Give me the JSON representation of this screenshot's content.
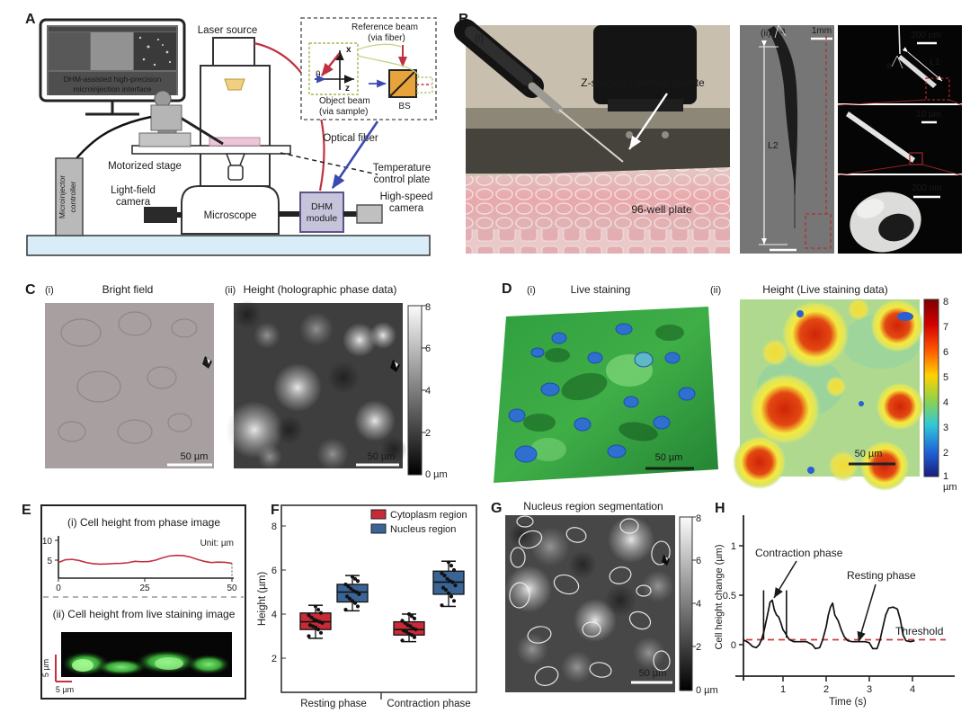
{
  "panelA": {
    "label": "A",
    "monitor_caption": [
      "DHM-assisted high-precision",
      "microinjection interface"
    ],
    "laser_source": "Laser source",
    "reference_beam1": "Reference beam",
    "reference_beam2": "(via fiber)",
    "object_beam1": "Object beam",
    "object_beam2": "(via sample)",
    "bs": "BS",
    "axis_x": "x",
    "axis_z": "z",
    "theta": "θ",
    "optical_fiber": "Optical fiber",
    "motorized_stage": "Motorized stage",
    "temperature1": "Temperature",
    "temperature2": "control plate",
    "microinjector1": "Microinjector",
    "microinjector2": "controller",
    "lightfield1": "Light-field",
    "lightfield2": "camera",
    "microscope": "Microscope",
    "dhm1": "DHM",
    "dhm2": "module",
    "highspeed1": "High-speed",
    "highspeed2": "camera"
  },
  "panelB": {
    "label": "B",
    "sub_i": "(i)",
    "sub_ii": "(ii)",
    "pipette_label": "Z-shaped injection pipette",
    "plate_label": "96-well plate",
    "a_label": "a",
    "a_label2": "a",
    "L1": "L1",
    "L2": "L2",
    "scale_1mm": "1mm",
    "scale_200um": "200 µm",
    "scale_10um": "10 µm",
    "scale_200nm": "200 nm"
  },
  "panelC": {
    "label": "C",
    "sub_i": "(i)",
    "sub_ii": "(ii)",
    "title_i": "Bright field",
    "title_ii": "Height (holographic phase data)",
    "scalebar_i": "50 µm",
    "scalebar_ii": "50 µm",
    "colorbar_ticks": [
      "8",
      "6",
      "4",
      "2"
    ],
    "colorbar_bottom": "0 µm"
  },
  "panelD": {
    "label": "D",
    "sub_i": "(i)",
    "sub_ii": "(ii)",
    "title_i": "Live staining",
    "title_ii": "Height (Live staining data)",
    "scalebar_i": "50 µm",
    "scalebar_ii": "50 µm",
    "colorbar_ticks": [
      "8",
      "7",
      "6",
      "5",
      "4",
      "3",
      "2",
      "1"
    ],
    "colorbar_unit": "µm"
  },
  "panelE": {
    "label": "E",
    "title_i": "(i) Cell height from phase image",
    "title_ii": "(ii) Cell height from live staining image",
    "unit_note": "Unit: µm",
    "y_ticks": [
      "10",
      "5"
    ],
    "x_ticks": [
      "0",
      "25",
      "50"
    ],
    "scale_v": "5 µm",
    "scale_h": "5 µm"
  },
  "panelF": {
    "label": "F",
    "ylabel": "Height (µm)",
    "y_ticks": [
      "8",
      "6",
      "4",
      "2"
    ],
    "legend": [
      {
        "label": "Cytoplasm region",
        "color": "#c82a36"
      },
      {
        "label": "Nucleus region",
        "color": "#3a6496"
      }
    ],
    "x_labels": [
      "Resting phase",
      "Contraction phase"
    ]
  },
  "panelG": {
    "label": "G",
    "title": "Nucleus region segmentation",
    "scalebar": "50 µm",
    "colorbar_ticks": [
      "8",
      "6",
      "4",
      "2"
    ],
    "colorbar_bottom": "0 µm"
  },
  "panelH": {
    "label": "H",
    "ylabel": "Cell height change (µm)",
    "xlabel": "Time (s)",
    "y_ticks": [
      "1",
      "0.5",
      "0"
    ],
    "x_ticks": [
      "1",
      "2",
      "3",
      "4"
    ],
    "annotation_contraction": "Contraction phase",
    "annotation_resting": "Resting phase",
    "threshold_label": "Threshold"
  },
  "colors": {
    "curve_red": "#c23140",
    "threshold_red": "#cf3a3a",
    "box_red": "#c82a36",
    "box_blue": "#3a6496",
    "bench_blue": "#d9edf8",
    "dhm_purple": "#c6c4da",
    "bs_orange": "#e8a43a"
  },
  "chart_data": [
    {
      "id": "E-line",
      "type": "line",
      "title": "(i) Cell height from phase image",
      "unit": "µm",
      "xlim": [
        0,
        50
      ],
      "ylim": [
        0,
        10
      ],
      "x_ticks": [
        0,
        25,
        50
      ],
      "y_ticks": [
        5,
        10
      ],
      "x": [
        0,
        2,
        4,
        6,
        8,
        10,
        12,
        14,
        16,
        18,
        20,
        22,
        24,
        26,
        28,
        30,
        32,
        34,
        36,
        38,
        40,
        42,
        44,
        46,
        48,
        50
      ],
      "y": [
        4.4,
        5.1,
        5.2,
        4.9,
        4.4,
        4.1,
        4.0,
        4.05,
        4.15,
        4.2,
        4.35,
        4.7,
        4.6,
        4.65,
        5.0,
        5.6,
        6.05,
        6.2,
        6.15,
        5.8,
        5.2,
        4.7,
        4.4,
        4.5,
        4.45,
        4.2
      ]
    },
    {
      "id": "F-box",
      "type": "box",
      "ylabel": "Height (µm)",
      "ylim": [
        1.5,
        8.6
      ],
      "y_ticks": [
        2,
        4,
        6,
        8
      ],
      "categories": [
        "Resting phase",
        "Contraction phase"
      ],
      "series": [
        {
          "name": "Cytoplasm region",
          "color": "#c82a36",
          "boxes": [
            {
              "whisker_low": 2.9,
              "q1": 3.3,
              "median": 3.65,
              "q3": 4.05,
              "whisker_high": 4.4,
              "points": [
                3.0,
                3.15,
                3.3,
                3.4,
                3.45,
                3.5,
                3.6,
                3.65,
                3.7,
                3.75,
                3.85,
                3.95,
                4.05,
                4.2,
                4.35
              ]
            },
            {
              "whisker_low": 2.75,
              "q1": 3.05,
              "median": 3.3,
              "q3": 3.65,
              "whisker_high": 4.0,
              "points": [
                2.8,
                2.95,
                3.05,
                3.1,
                3.2,
                3.25,
                3.3,
                3.35,
                3.45,
                3.5,
                3.6,
                3.7,
                3.8,
                3.9,
                4.0
              ]
            }
          ]
        },
        {
          "name": "Nucleus region",
          "color": "#3a6496",
          "boxes": [
            {
              "whisker_low": 4.15,
              "q1": 4.55,
              "median": 5.0,
              "q3": 5.35,
              "whisker_high": 5.75,
              "points": [
                4.2,
                4.35,
                4.5,
                4.6,
                4.7,
                4.8,
                4.9,
                5.0,
                5.05,
                5.15,
                5.25,
                5.35,
                5.5,
                5.6,
                5.7
              ]
            },
            {
              "whisker_low": 4.35,
              "q1": 4.9,
              "median": 5.45,
              "q3": 5.95,
              "whisker_high": 6.4,
              "points": [
                4.4,
                4.6,
                4.8,
                4.95,
                5.1,
                5.2,
                5.3,
                5.45,
                5.5,
                5.6,
                5.75,
                5.85,
                6.0,
                6.2,
                6.35
              ]
            }
          ]
        }
      ]
    },
    {
      "id": "H-line",
      "type": "line",
      "ylabel": "Cell height change (µm)",
      "xlabel": "Time (s)",
      "xlim": [
        0,
        4.7
      ],
      "ylim": [
        -0.15,
        1.15
      ],
      "x_ticks": [
        1,
        2,
        3,
        4
      ],
      "y_ticks": [
        0,
        0.5,
        1
      ],
      "threshold": 0.05,
      "x": [
        0.08,
        0.2,
        0.3,
        0.38,
        0.45,
        0.5,
        0.55,
        0.6,
        0.65,
        0.7,
        0.75,
        0.8,
        0.85,
        0.9,
        0.95,
        1.0,
        1.05,
        1.1,
        1.15,
        1.25,
        1.4,
        1.55,
        1.68,
        1.75,
        1.85,
        1.92,
        2.0,
        2.05,
        2.1,
        2.15,
        2.2,
        2.28,
        2.35,
        2.42,
        2.5,
        2.6,
        2.75,
        2.9,
        3.0,
        3.08,
        3.18,
        3.25,
        3.3,
        3.38,
        3.45,
        3.55,
        3.65,
        3.72,
        3.78,
        3.85,
        3.95,
        4.05
      ],
      "y": [
        0.05,
        0.02,
        -0.02,
        -0.03,
        0.0,
        0.05,
        0.12,
        0.22,
        0.32,
        0.43,
        0.45,
        0.35,
        0.3,
        0.28,
        0.22,
        0.15,
        0.12,
        0.08,
        0.05,
        0.03,
        0.03,
        0.03,
        0.0,
        -0.04,
        -0.03,
        0.05,
        0.18,
        0.3,
        0.38,
        0.42,
        0.3,
        0.24,
        0.15,
        0.08,
        0.04,
        0.03,
        0.03,
        0.03,
        0.02,
        -0.04,
        -0.04,
        0.05,
        0.15,
        0.3,
        0.37,
        0.38,
        0.36,
        0.25,
        0.1,
        0.04,
        0.03,
        0.04
      ],
      "spikes": [
        {
          "t": 0.55,
          "y0": 0.05,
          "y1": 0.55
        },
        {
          "t": 1.08,
          "y0": 0.07,
          "y1": 0.55
        }
      ]
    }
  ]
}
